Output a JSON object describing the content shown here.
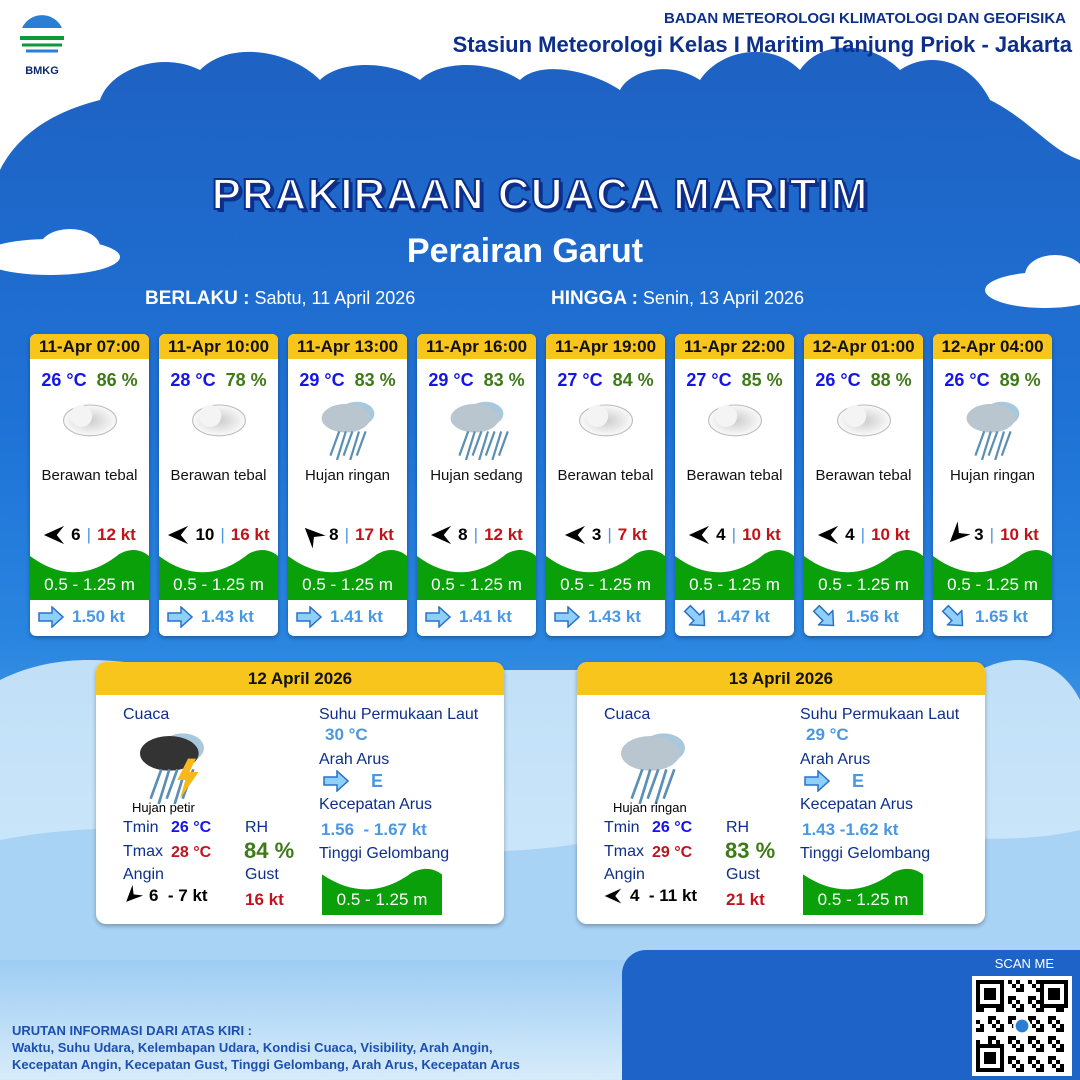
{
  "header": {
    "logo_text": "BMKG",
    "org": "BADAN METEOROLOGI KLIMATOLOGI DAN GEOFISIKA",
    "station": "Stasiun Meteorologi Kelas I Maritim Tanjung Priok - Jakarta"
  },
  "title": "PRAKIRAAN CUACA MARITIM",
  "subtitle": "Perairan Garut",
  "validity": {
    "from_label": "BERLAKU :",
    "from": "Sabtu, 11 April 2026",
    "to_label": "HINGGA :",
    "to": "Senin, 13 April 2026"
  },
  "colors": {
    "header_yellow": "#f8c51c",
    "wave_green": "#0aa00a",
    "temp_blue": "#1515e8",
    "rh_green": "#3f7a18",
    "gust_red": "#c0141c",
    "current_blue": "#4a97e2"
  },
  "forecasts": [
    {
      "time": "11-Apr 07:00",
      "temp": "26 °C",
      "rh": "86 %",
      "icon": "cloudy-icon",
      "condition": "Berawan tebal",
      "wind_dir": "W",
      "wind": "6",
      "sep": "|",
      "gust": "12 kt",
      "wave": "0.5 - 1.25 m",
      "current_dir": "E",
      "current": "1.50 kt"
    },
    {
      "time": "11-Apr 10:00",
      "temp": "28 °C",
      "rh": "78 %",
      "icon": "cloudy-icon",
      "condition": "Berawan tebal",
      "wind_dir": "W",
      "wind": "10",
      "sep": "|",
      "gust": "16 kt",
      "wave": "0.5 - 1.25 m",
      "current_dir": "E",
      "current": "1.43 kt"
    },
    {
      "time": "11-Apr 13:00",
      "temp": "29 °C",
      "rh": "83 %",
      "icon": "light-rain-icon",
      "condition": "Hujan ringan",
      "wind_dir": "NW",
      "wind": "8",
      "sep": "|",
      "gust": "17 kt",
      "wave": "0.5 - 1.25 m",
      "current_dir": "E",
      "current": "1.41 kt"
    },
    {
      "time": "11-Apr 16:00",
      "temp": "29 °C",
      "rh": "83 %",
      "icon": "moderate-rain-icon",
      "condition": "Hujan sedang",
      "wind_dir": "W",
      "wind": "8",
      "sep": "|",
      "gust": "12 kt",
      "wave": "0.5 - 1.25 m",
      "current_dir": "E",
      "current": "1.41 kt"
    },
    {
      "time": "11-Apr 19:00",
      "temp": "27 °C",
      "rh": "84 %",
      "icon": "cloudy-icon",
      "condition": "Berawan tebal",
      "wind_dir": "W",
      "wind": "3",
      "sep": "|",
      "gust": "7 kt",
      "wave": "0.5 - 1.25 m",
      "current_dir": "E",
      "current": "1.43 kt"
    },
    {
      "time": "11-Apr 22:00",
      "temp": "27 °C",
      "rh": "85 %",
      "icon": "cloudy-icon",
      "condition": "Berawan tebal",
      "wind_dir": "W",
      "wind": "4",
      "sep": "|",
      "gust": "10 kt",
      "wave": "0.5 - 1.25 m",
      "current_dir": "SE",
      "current": "1.47 kt"
    },
    {
      "time": "12-Apr 01:00",
      "temp": "26 °C",
      "rh": "88 %",
      "icon": "cloudy-icon",
      "condition": "Berawan tebal",
      "wind_dir": "W",
      "wind": "4",
      "sep": "|",
      "gust": "10 kt",
      "wave": "0.5 - 1.25 m",
      "current_dir": "SE",
      "current": "1.56 kt"
    },
    {
      "time": "12-Apr 04:00",
      "temp": "26 °C",
      "rh": "89 %",
      "icon": "light-rain-icon",
      "condition": "Hujan ringan",
      "wind_dir": "SW",
      "wind": "3",
      "sep": "|",
      "gust": "10 kt",
      "wave": "0.5 - 1.25 m",
      "current_dir": "SE",
      "current": "1.65 kt"
    }
  ],
  "labels": {
    "weather": "Cuaca",
    "sst": "Suhu Permukaan Laut",
    "current_dir": "Arah Arus",
    "current_speed": "Kecepatan Arus",
    "wave": "Tinggi Gelombang",
    "tmin": "Tmin",
    "tmax": "Tmax",
    "rh": "RH",
    "wind": "Angin",
    "gust": "Gust"
  },
  "daily": [
    {
      "date": "12 April 2026",
      "icon": "thunderstorm-icon",
      "condition": "Hujan petir",
      "tmin": "26 °C",
      "tmax": "28 °C",
      "rh": "84 %",
      "wind_dir": "SW",
      "wind": "6  - 7 kt",
      "gust": "16 kt",
      "sst": "30 °C",
      "current_dir": "E",
      "current_speed": "1.56  - 1.67 kt",
      "wave": "0.5 - 1.25 m"
    },
    {
      "date": "13 April 2026",
      "icon": "light-rain-icon",
      "condition": "Hujan ringan",
      "tmin": "26 °C",
      "tmax": "29 °C",
      "rh": "83 %",
      "wind_dir": "W",
      "wind": "4  - 11 kt",
      "gust": "21 kt",
      "sst": "29 °C",
      "current_dir": "E",
      "current_speed": "1.43 -1.62 kt",
      "wave": "0.5 - 1.25 m"
    }
  ],
  "footer": {
    "title": "URUTAN INFORMASI DARI ATAS KIRI :",
    "line1": "Waktu, Suhu Udara, Kelembapan Udara, Kondisi Cuaca, Visibility, Arah Angin,",
    "line2": "Kecepatan Angin, Kecepatan Gust, Tinggi Gelombang, Arah Arus, Kecepatan Arus"
  },
  "qr": {
    "label": "SCAN ME"
  }
}
